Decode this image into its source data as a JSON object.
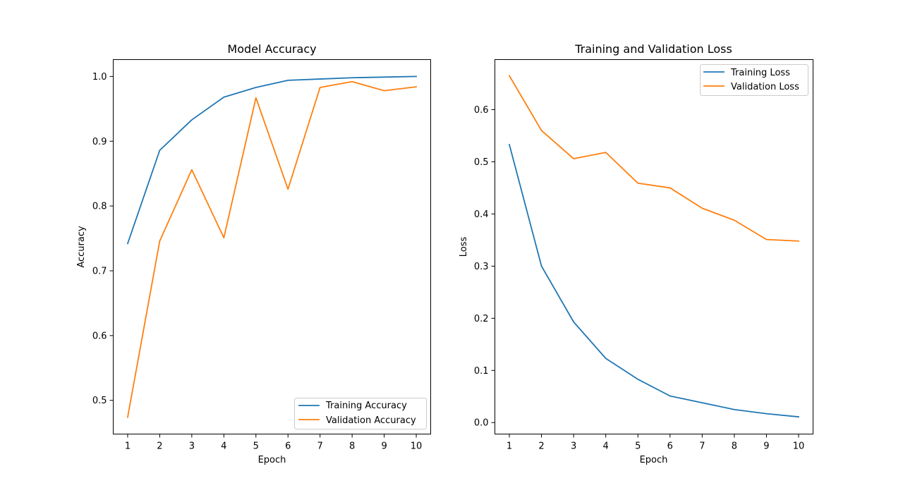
{
  "chart_data": [
    {
      "type": "line",
      "title": "Model Accuracy",
      "xlabel": "Epoch",
      "ylabel": "Accuracy",
      "x": [
        1,
        2,
        3,
        4,
        5,
        6,
        7,
        8,
        9,
        10
      ],
      "xticks": [
        "1",
        "2",
        "3",
        "4",
        "5",
        "6",
        "7",
        "8",
        "9",
        "10"
      ],
      "yticks": [
        "0.5",
        "0.6",
        "0.7",
        "0.8",
        "0.9",
        "1.0"
      ],
      "ytick_values": [
        0.5,
        0.6,
        0.7,
        0.8,
        0.9,
        1.0
      ],
      "xlim": [
        0.55,
        10.45
      ],
      "ylim": [
        0.448,
        1.026
      ],
      "legend_position": "lower-right",
      "grid": false,
      "series": [
        {
          "name": "Training Accuracy",
          "color": "#1f77b4",
          "values": [
            0.742,
            0.886,
            0.933,
            0.968,
            0.983,
            0.994,
            0.996,
            0.998,
            0.999,
            1.0
          ]
        },
        {
          "name": "Validation Accuracy",
          "color": "#ff7f0e",
          "values": [
            0.474,
            0.746,
            0.856,
            0.751,
            0.967,
            0.826,
            0.983,
            0.992,
            0.978,
            0.984
          ]
        }
      ]
    },
    {
      "type": "line",
      "title": "Training and Validation Loss",
      "xlabel": "Epoch",
      "ylabel": "Loss",
      "x": [
        1,
        2,
        3,
        4,
        5,
        6,
        7,
        8,
        9,
        10
      ],
      "xticks": [
        "1",
        "2",
        "3",
        "4",
        "5",
        "6",
        "7",
        "8",
        "9",
        "10"
      ],
      "yticks": [
        "0.0",
        "0.1",
        "0.2",
        "0.3",
        "0.4",
        "0.5",
        "0.6"
      ],
      "ytick_values": [
        0.0,
        0.1,
        0.2,
        0.3,
        0.4,
        0.5,
        0.6
      ],
      "xlim": [
        0.55,
        10.45
      ],
      "ylim": [
        -0.022,
        0.696
      ],
      "legend_position": "upper-right",
      "grid": false,
      "series": [
        {
          "name": "Training Loss",
          "color": "#1f77b4",
          "values": [
            0.533,
            0.3,
            0.193,
            0.123,
            0.083,
            0.051,
            0.038,
            0.025,
            0.017,
            0.011
          ]
        },
        {
          "name": "Validation Loss",
          "color": "#ff7f0e",
          "values": [
            0.665,
            0.56,
            0.506,
            0.518,
            0.459,
            0.45,
            0.411,
            0.388,
            0.351,
            0.348
          ]
        }
      ]
    }
  ]
}
